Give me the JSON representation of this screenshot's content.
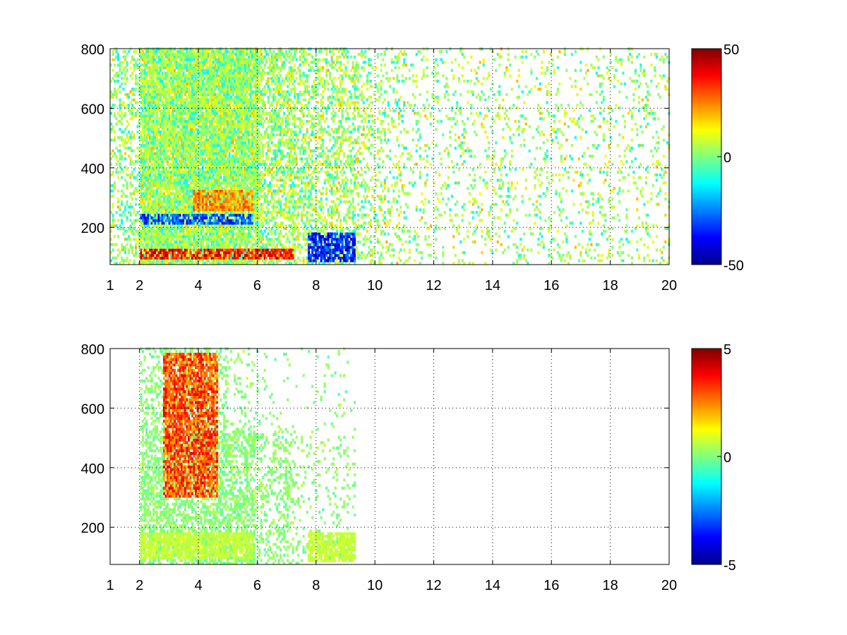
{
  "figure": {
    "background": "#ffffff",
    "colormap": "jet"
  },
  "chart_data": [
    {
      "type": "heatmap",
      "title": "",
      "xlabel": "",
      "ylabel": "",
      "xlim": [
        1,
        20
      ],
      "ylim": [
        75,
        800
      ],
      "x_ticks": [
        1,
        2,
        4,
        6,
        8,
        10,
        12,
        14,
        16,
        18,
        20
      ],
      "y_ticks": [
        200,
        400,
        600,
        800
      ],
      "grid": "dotted",
      "colorbar": {
        "min": -50,
        "max": 50,
        "ticks": [
          -50,
          0,
          50
        ]
      },
      "features": [
        {
          "name": "low band",
          "x_range": [
            2.0,
            7.2
          ],
          "y_range": [
            90,
            125
          ],
          "value": 42
        },
        {
          "name": "mid band",
          "x_range": [
            2.0,
            5.8
          ],
          "y_range": [
            210,
            240
          ],
          "value": -35
        },
        {
          "name": "rising ridge",
          "x_range": [
            3.8,
            5.8
          ],
          "y_range": [
            255,
            320
          ],
          "value": 28
        },
        {
          "name": "low block",
          "x_range": [
            7.7,
            9.3
          ],
          "y_range": [
            80,
            180
          ],
          "value": -40
        }
      ]
    },
    {
      "type": "heatmap",
      "title": "",
      "xlabel": "",
      "ylabel": "",
      "xlim": [
        1,
        20
      ],
      "ylim": [
        75,
        800
      ],
      "x_ticks": [
        1,
        2,
        4,
        6,
        8,
        10,
        12,
        14,
        16,
        18,
        20
      ],
      "y_ticks": [
        200,
        400,
        600,
        800
      ],
      "grid": "dotted",
      "colorbar": {
        "min": -5,
        "max": 5,
        "ticks": [
          -5,
          0,
          5
        ]
      },
      "features": [
        {
          "name": "low band",
          "x_range": [
            2.0,
            5.8
          ],
          "y_range": [
            90,
            180
          ],
          "value": 0.8
        },
        {
          "name": "scattered peaks",
          "x_range": [
            2.8,
            4.6
          ],
          "y_range": [
            300,
            780
          ],
          "value": 3.5
        },
        {
          "name": "low block",
          "x_range": [
            7.7,
            9.3
          ],
          "y_range": [
            80,
            180
          ],
          "value": 0.8
        }
      ]
    }
  ]
}
